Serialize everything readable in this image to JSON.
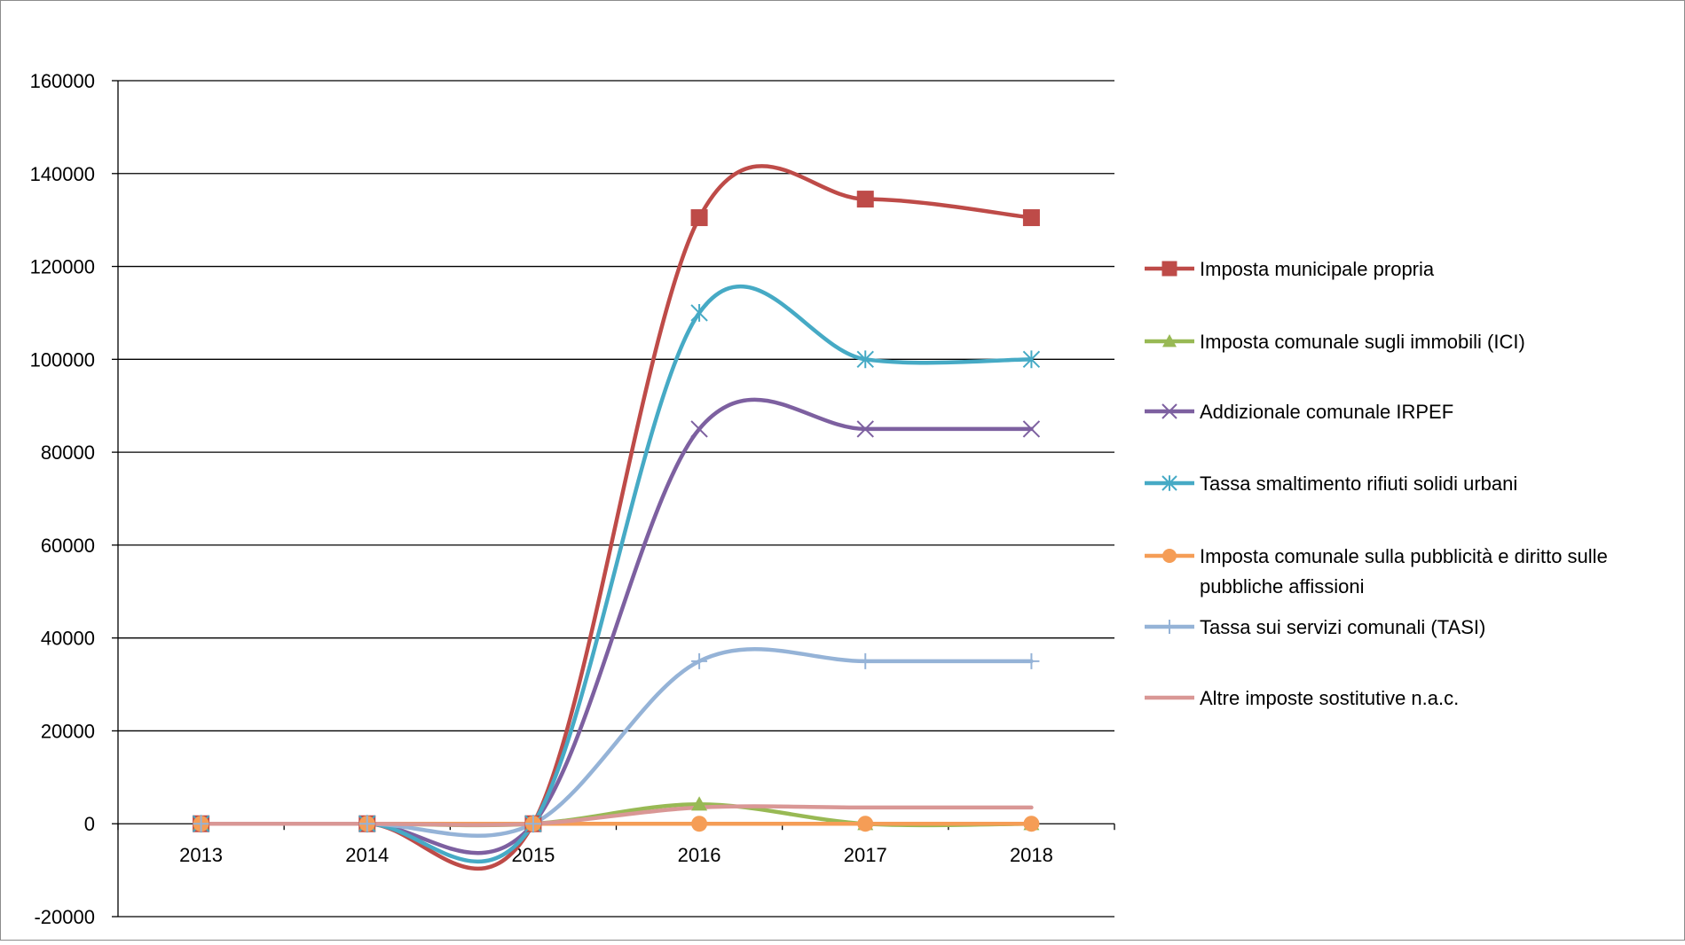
{
  "chart_data": {
    "type": "line",
    "categories": [
      "2013",
      "2014",
      "2015",
      "2016",
      "2017",
      "2018"
    ],
    "ylim": [
      -20000,
      160000
    ],
    "y_ticks": [
      -20000,
      0,
      20000,
      40000,
      60000,
      80000,
      100000,
      120000,
      140000,
      160000
    ],
    "y_tick_labels": [
      "-20000",
      "0",
      "20000",
      "40000",
      "60000",
      "80000",
      "100000",
      "120000",
      "140000",
      "160000"
    ],
    "grid": true,
    "smooth": true,
    "legend_position": "right",
    "title": "",
    "xlabel": "",
    "ylabel": "",
    "series": [
      {
        "name": "Imposta municipale propria",
        "values": [
          0,
          0,
          0,
          130500,
          134500,
          130500
        ],
        "color": "#BE4B48",
        "marker": "square"
      },
      {
        "name": "Imposta comunale sugli immobili (ICI)",
        "values": [
          0,
          0,
          0,
          4200,
          0,
          0
        ],
        "color": "#98B954",
        "marker": "triangle"
      },
      {
        "name": "Addizionale comunale IRPEF",
        "values": [
          0,
          0,
          0,
          85000,
          85000,
          85000
        ],
        "color": "#7D60A0",
        "marker": "x"
      },
      {
        "name": "Tassa smaltimento rifiuti solidi urbani",
        "values": [
          0,
          0,
          0,
          110000,
          100000,
          100000
        ],
        "color": "#46AAC5",
        "marker": "star"
      },
      {
        "name": "Imposta comunale sulla pubblicità e diritto sulle pubbliche affissioni",
        "name_lines": [
          "Imposta comunale sulla pubblicità e diritto sulle",
          "pubbliche affissioni"
        ],
        "values": [
          0,
          0,
          0,
          0,
          0,
          0
        ],
        "color": "#F59D56",
        "marker": "circle"
      },
      {
        "name": "Tassa sui servizi comunali (TASI)",
        "values": [
          0,
          0,
          0,
          35000,
          35000,
          35000
        ],
        "color": "#95B3D7",
        "marker": "plus"
      },
      {
        "name": "Altre imposte sostitutive n.a.c.",
        "values": [
          0,
          0,
          0,
          3500,
          3500,
          3500
        ],
        "color": "#D99795",
        "marker": "none"
      }
    ]
  }
}
